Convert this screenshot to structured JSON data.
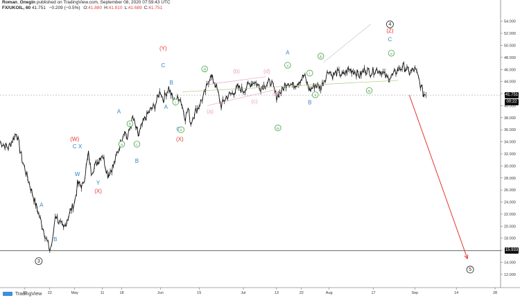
{
  "header": {
    "line1_author": "Roman_Onegin",
    "line1_rest": "published on TradingView.com, September 08, 2020 07:59:43 UTC",
    "symbol": "FX/UKOIL, 60",
    "last": "41.751",
    "change": "−0.209 (−0.5%)",
    "ohlc": [
      {
        "k": "O:",
        "v": "41.880"
      },
      {
        "k": "H:",
        "v": "41.910"
      },
      {
        "k": "L:",
        "v": "41.689"
      },
      {
        "k": "C:",
        "v": "41.751"
      }
    ],
    "ohlc_color": "#e0423e"
  },
  "footer": {
    "brand": "TradingView"
  },
  "colors": {
    "candle": "#111111",
    "red": "#e8342c",
    "blue": "#2f86c8",
    "green": "#43a047",
    "pink": "#e8a2b9",
    "black": "#222222",
    "price_badge": "#111111",
    "level_badge": "#111111"
  },
  "price_badges": [
    {
      "text": "41.751",
      "price": 41.75
    },
    {
      "text": "00:22",
      "price": 40.55
    },
    {
      "text": "15.933",
      "price": 15.93
    }
  ],
  "chart_data": {
    "type": "line",
    "title": "",
    "ylim": [
      11.3,
      55
    ],
    "y_ticks": [
      "12.000",
      "14.000",
      "16.000",
      "18.000",
      "20.000",
      "22.000",
      "24.000",
      "26.000",
      "28.000",
      "30.000",
      "32.000",
      "34.000",
      "36.000",
      "38.000",
      "40.000",
      "42.000",
      "44.000",
      "46.000",
      "48.000",
      "50.000",
      "52.000",
      "54.000"
    ],
    "y_tick_values": [
      12,
      14,
      16,
      18,
      20,
      22,
      24,
      26,
      28,
      30,
      32,
      34,
      36,
      38,
      40,
      42,
      44,
      46,
      48,
      50,
      52,
      54
    ],
    "x_ticks": [
      "13",
      "22",
      "May",
      "11",
      "18",
      "Jun",
      "15",
      "Jul",
      "13",
      "22",
      "Aug",
      "17",
      "Sep",
      "14",
      "28"
    ],
    "x_tick_days": [
      12,
      21,
      30,
      40,
      47,
      61,
      75,
      91,
      103,
      112,
      122,
      138,
      153,
      168,
      182
    ],
    "xlim": [
      3,
      184
    ],
    "horizontal_levels": [
      15.93,
      41.75
    ],
    "series": [
      {
        "x": [
          3,
          6,
          9,
          11,
          13,
          15,
          17,
          19,
          21,
          22,
          23,
          24,
          26,
          28,
          30,
          31,
          33,
          35,
          36,
          38,
          40,
          42,
          44,
          46,
          48,
          49,
          51,
          53,
          55,
          57,
          59,
          61,
          62,
          64,
          66,
          68,
          70,
          71,
          72,
          73,
          75,
          77,
          79,
          81,
          83,
          85,
          87,
          89,
          91,
          93,
          95,
          97,
          99,
          101,
          103,
          105,
          107,
          109,
          111,
          113,
          115,
          117,
          119,
          121,
          122,
          123,
          125,
          127,
          129,
          131,
          133,
          135,
          137,
          139,
          141,
          143,
          145,
          147,
          149,
          151,
          153,
          154,
          155,
          156,
          157
        ],
        "y": [
          34,
          33,
          35.5,
          31,
          28,
          25,
          22,
          19,
          16,
          17.5,
          22,
          21,
          19.5,
          22,
          24,
          27,
          26.7,
          32,
          29,
          30.5,
          32,
          28.5,
          30,
          33,
          36,
          34.5,
          38,
          35,
          37.5,
          39,
          40,
          42.5,
          41,
          43,
          40.5,
          41.5,
          38,
          39.5,
          37,
          38.5,
          40,
          42,
          45,
          43.5,
          40,
          41.5,
          42,
          43,
          42.5,
          43.5,
          44,
          43,
          43.5,
          44,
          41.5,
          42.5,
          44,
          43.3,
          44,
          45,
          42.5,
          43.5,
          43,
          45,
          46,
          45,
          45.5,
          45,
          46,
          45.8,
          45,
          46,
          45.5,
          46,
          45.7,
          44.5,
          45,
          46,
          46.5,
          45.5,
          46,
          45,
          43.5,
          42,
          41.751
        ]
      }
    ],
    "annotations": [
      {
        "text": "(Y)",
        "color": "red",
        "x": 62,
        "y": 49.2
      },
      {
        "text": "C",
        "color": "blue",
        "x": 62,
        "y": 46.4
      },
      {
        "text": "B",
        "color": "blue",
        "x": 65,
        "y": 43.5
      },
      {
        "text": "A",
        "color": "blue",
        "x": 63,
        "y": 39.5
      },
      {
        "text": "C",
        "color": "blue",
        "x": 67.5,
        "y": 35.8
      },
      {
        "text": "(X)",
        "color": "red",
        "x": 68,
        "y": 34.1
      },
      {
        "text": "(W)",
        "color": "red",
        "x": 30,
        "y": 34.1
      },
      {
        "text": "C",
        "color": "blue",
        "x": 30,
        "y": 32.9
      },
      {
        "text": "X",
        "color": "blue",
        "x": 32,
        "y": 32.9
      },
      {
        "text": "W",
        "color": "blue",
        "x": 31,
        "y": 28.3
      },
      {
        "text": "Y",
        "color": "blue",
        "x": 38.5,
        "y": 26.9
      },
      {
        "text": "(X)",
        "color": "red",
        "x": 38.5,
        "y": 25.5
      },
      {
        "text": "A",
        "color": "blue",
        "x": 18,
        "y": 23.2
      },
      {
        "text": "B",
        "color": "blue",
        "x": 23,
        "y": 17.5
      },
      {
        "text": "A",
        "color": "blue",
        "x": 46,
        "y": 38.7
      },
      {
        "text": "B",
        "color": "blue",
        "x": 52.5,
        "y": 30.5
      },
      {
        "text": "(a)",
        "color": "pink",
        "x": 79,
        "y": 38.7
      },
      {
        "text": "(b)",
        "color": "pink",
        "x": 88.5,
        "y": 45.4
      },
      {
        "text": "(c)",
        "color": "pink",
        "x": 95,
        "y": 40.4
      },
      {
        "text": "(d)",
        "color": "pink",
        "x": 99.5,
        "y": 45.4
      },
      {
        "text": "(e)",
        "color": "pink",
        "x": 103,
        "y": 41.7
      },
      {
        "text": "A",
        "color": "blue",
        "x": 107,
        "y": 48.5
      },
      {
        "text": "B",
        "color": "blue",
        "x": 115,
        "y": 40.2
      },
      {
        "text": "(Z)",
        "color": "red",
        "x": 144,
        "y": 52.1
      },
      {
        "text": "C",
        "color": "blue",
        "x": 144,
        "y": 50.7
      }
    ],
    "circled_labels": [
      {
        "text": "b",
        "color": "green",
        "x": 50,
        "y": 37
      },
      {
        "text": "a",
        "color": "green",
        "x": 47,
        "y": 33.6
      },
      {
        "text": "c",
        "color": "green",
        "x": 52.5,
        "y": 33.6
      },
      {
        "text": "i",
        "color": "green",
        "x": 66.5,
        "y": 40.6
      },
      {
        "text": "ii",
        "color": "green",
        "x": 68.5,
        "y": 36
      },
      {
        "text": "iii",
        "color": "green",
        "x": 77,
        "y": 46.1
      },
      {
        "text": "iv",
        "color": "green",
        "x": 103.5,
        "y": 36.3
      },
      {
        "text": "v",
        "color": "green",
        "x": 107,
        "y": 46.7
      },
      {
        "text": "i",
        "color": "green",
        "x": 115,
        "y": 45.4
      },
      {
        "text": "ii",
        "color": "green",
        "x": 117,
        "y": 41.8
      },
      {
        "text": "iii",
        "color": "green",
        "x": 119,
        "y": 48.2
      },
      {
        "text": "iv",
        "color": "green",
        "x": 136.5,
        "y": 42.5
      },
      {
        "text": "v",
        "color": "green",
        "x": 144.5,
        "y": 48.7
      },
      {
        "text": "3",
        "color": "black",
        "x": 17,
        "y": 14.2
      },
      {
        "text": "4",
        "color": "black",
        "x": 144,
        "y": 53.5
      },
      {
        "text": "5",
        "color": "black",
        "x": 173,
        "y": 12.8
      }
    ],
    "trend_lines": [
      {
        "color": "#c8c8c8",
        "x1": 120,
        "y1": 47.2,
        "x2": 137,
        "y2": 53.5
      },
      {
        "color": "#a7c97b",
        "x1": 69,
        "y1": 42.3,
        "x2": 147,
        "y2": 44.2
      },
      {
        "color": "#e8a2b9",
        "x1": 78,
        "y1": 43.5,
        "x2": 99,
        "y2": 44.8
      },
      {
        "color": "#e8a2b9",
        "x1": 78,
        "y1": 40.0,
        "x2": 103,
        "y2": 42.7
      },
      {
        "color": "#e8342c",
        "x1": 151,
        "y1": 41.75,
        "x2": 172,
        "y2": 14.6,
        "arrow": true
      }
    ]
  }
}
